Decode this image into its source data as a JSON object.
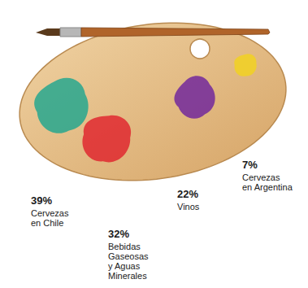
{
  "chart_data": {
    "type": "pie",
    "categories": [
      "Cervezas en Chile",
      "Bebidas Gaseosas y Aguas Minerales",
      "Vinos",
      "Cervezas en Argentina"
    ],
    "values": [
      39,
      32,
      22,
      7
    ],
    "value_labels": [
      "39%",
      "32%",
      "22%",
      "7%"
    ],
    "colors": [
      "#1aa58e",
      "#e01f2b",
      "#6b1f9e",
      "#f3d31c"
    ],
    "data_labels": true
  }
}
